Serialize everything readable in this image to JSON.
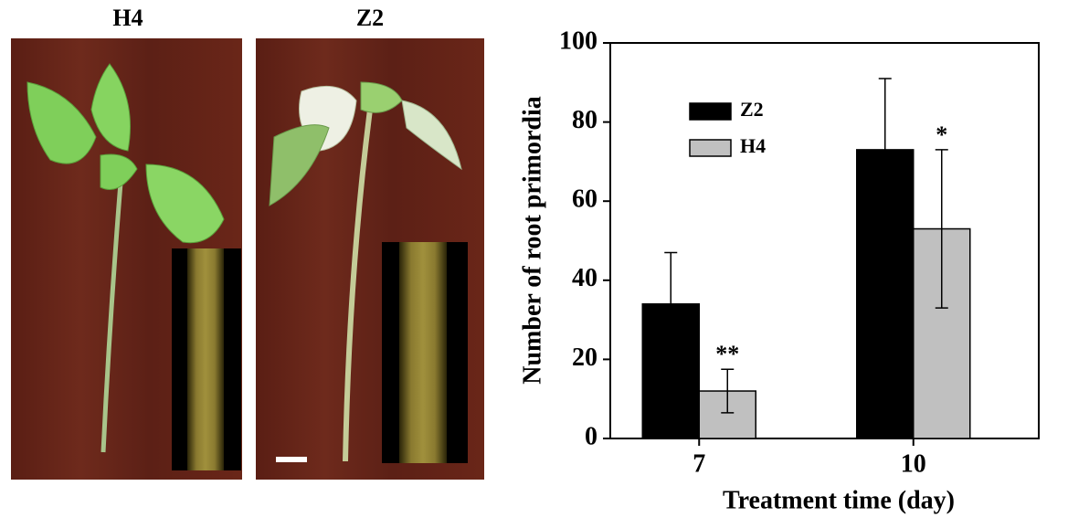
{
  "panels": [
    {
      "label": "H4"
    },
    {
      "label": "Z2"
    }
  ],
  "chart_data": {
    "type": "bar",
    "ylabel": "Number of root primordia",
    "xlabel": "Treatment time (day)",
    "categories": [
      "7",
      "10"
    ],
    "series": [
      {
        "name": "Z2",
        "color": "#000000",
        "values": [
          34,
          73
        ],
        "errors": [
          13,
          18
        ]
      },
      {
        "name": "H4",
        "color": "#c0c0c0",
        "values": [
          12,
          53
        ],
        "errors": [
          5.5,
          20
        ],
        "significance": [
          "**",
          "*"
        ]
      }
    ],
    "ylim": [
      0,
      100
    ],
    "yticks": [
      0,
      20,
      40,
      60,
      80,
      100
    ]
  }
}
